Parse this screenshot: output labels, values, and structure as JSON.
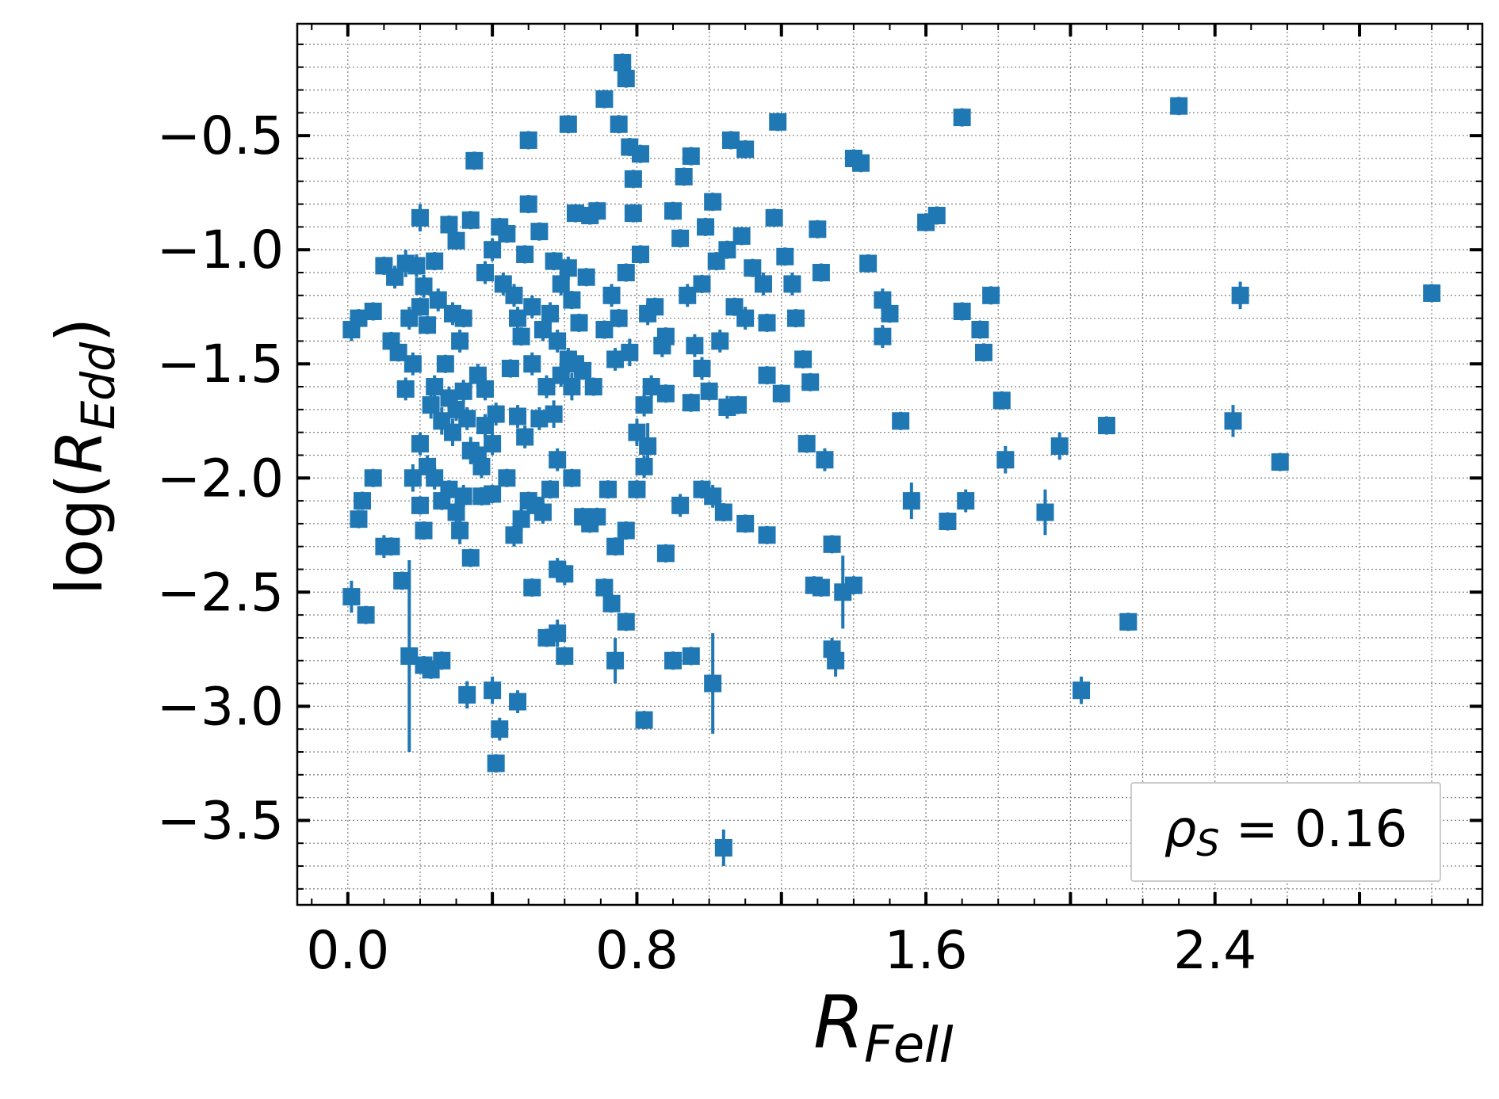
{
  "chart_data": {
    "type": "scatter",
    "xlabel": {
      "main": "R",
      "sub": "FeII"
    },
    "ylabel": {
      "pre": "log(",
      "main": "R",
      "sub": "Edd",
      "post": ")"
    },
    "xlim": [
      -0.14,
      3.14
    ],
    "ylim": [
      -3.87,
      -0.01
    ],
    "x_ticks": [
      0.0,
      0.8,
      1.6,
      2.4
    ],
    "x_tick_labels": [
      "0.0",
      "0.8",
      "1.6",
      "2.4"
    ],
    "y_ticks": [
      -0.5,
      -1.0,
      -1.5,
      -2.0,
      -2.5,
      -3.0,
      -3.5
    ],
    "y_tick_labels": [
      "−0.5",
      "−1.0",
      "−1.5",
      "−2.0",
      "−2.5",
      "−3.0",
      "−3.5"
    ],
    "grid": true,
    "series_color": "#1f77b4",
    "annotation": {
      "symbol": "ρ",
      "sub": "S",
      "text": " = 0.16",
      "placement": "bottom-right"
    },
    "points": [
      [
        0.01,
        -1.35,
        0.05
      ],
      [
        0.03,
        -1.3,
        0.04
      ],
      [
        0.07,
        -1.27,
        0.04
      ],
      [
        0.1,
        -1.07,
        0.04
      ],
      [
        0.12,
        -1.4,
        0.04
      ],
      [
        0.13,
        -1.12,
        0.05
      ],
      [
        0.14,
        -1.45,
        0.04
      ],
      [
        0.16,
        -1.06,
        0.06
      ],
      [
        0.17,
        -1.3,
        0.05
      ],
      [
        0.19,
        -1.07,
        0.05
      ],
      [
        0.2,
        -1.25,
        0.04
      ],
      [
        0.21,
        -1.16,
        0.05
      ],
      [
        0.2,
        -0.86,
        0.06
      ],
      [
        0.22,
        -1.33,
        0.04
      ],
      [
        0.24,
        -1.05,
        0.04
      ],
      [
        0.25,
        -1.22,
        0.05
      ],
      [
        0.27,
        -1.5,
        0.04
      ],
      [
        0.28,
        -0.89,
        0.04
      ],
      [
        0.29,
        -1.28,
        0.05
      ],
      [
        0.31,
        -1.4,
        0.05
      ],
      [
        0.32,
        -1.3,
        0.04
      ],
      [
        0.34,
        -0.87,
        0.04
      ],
      [
        0.36,
        -1.55,
        0.05
      ],
      [
        0.38,
        -1.61,
        0.05
      ],
      [
        0.3,
        -0.96,
        0.04
      ],
      [
        0.38,
        -1.1,
        0.05
      ],
      [
        0.4,
        -1.0,
        0.05
      ],
      [
        0.42,
        -0.9,
        0.04
      ],
      [
        0.43,
        -1.15,
        0.05
      ],
      [
        0.44,
        -0.93,
        0.04
      ],
      [
        0.46,
        -1.2,
        0.05
      ],
      [
        0.47,
        -1.3,
        0.05
      ],
      [
        0.48,
        -1.38,
        0.04
      ],
      [
        0.49,
        -1.02,
        0.04
      ],
      [
        0.5,
        -0.8,
        0.04
      ],
      [
        0.51,
        -1.25,
        0.05
      ],
      [
        0.53,
        -0.92,
        0.04
      ],
      [
        0.54,
        -1.35,
        0.05
      ],
      [
        0.56,
        -1.28,
        0.05
      ],
      [
        0.57,
        -1.05,
        0.04
      ],
      [
        0.58,
        -1.4,
        0.05
      ],
      [
        0.59,
        -1.15,
        0.05
      ],
      [
        0.61,
        -1.08,
        0.05
      ],
      [
        0.62,
        -1.22,
        0.04
      ],
      [
        0.63,
        -0.84,
        0.04
      ],
      [
        0.64,
        -1.32,
        0.04
      ],
      [
        0.66,
        -1.12,
        0.04
      ],
      [
        0.67,
        -0.85,
        0.04
      ],
      [
        0.69,
        -0.83,
        0.04
      ],
      [
        0.71,
        -1.35,
        0.04
      ],
      [
        0.73,
        -1.2,
        0.05
      ],
      [
        0.75,
        -1.3,
        0.04
      ],
      [
        0.77,
        -1.1,
        0.04
      ],
      [
        0.79,
        -0.84,
        0.04
      ],
      [
        0.81,
        -1.02,
        0.04
      ],
      [
        0.83,
        -1.28,
        0.05
      ],
      [
        0.85,
        -1.25,
        0.04
      ],
      [
        0.87,
        -1.42,
        0.05
      ],
      [
        0.88,
        -1.38,
        0.04
      ],
      [
        0.9,
        -0.83,
        0.04
      ],
      [
        0.92,
        -0.95,
        0.04
      ],
      [
        0.94,
        -1.2,
        0.05
      ],
      [
        0.96,
        -1.42,
        0.05
      ],
      [
        0.98,
        -1.15,
        0.04
      ],
      [
        0.99,
        -0.9,
        0.04
      ],
      [
        1.01,
        -0.79,
        0.04
      ],
      [
        1.02,
        -1.05,
        0.04
      ],
      [
        1.03,
        -1.4,
        0.05
      ],
      [
        1.05,
        -1.0,
        0.04
      ],
      [
        1.07,
        -1.25,
        0.04
      ],
      [
        1.09,
        -0.94,
        0.04
      ],
      [
        1.1,
        -1.3,
        0.05
      ],
      [
        1.12,
        -1.08,
        0.04
      ],
      [
        1.15,
        -1.15,
        0.05
      ],
      [
        1.16,
        -1.32,
        0.04
      ],
      [
        1.18,
        -0.86,
        0.04
      ],
      [
        1.21,
        -1.03,
        0.04
      ],
      [
        1.23,
        -1.15,
        0.05
      ],
      [
        1.24,
        -1.3,
        0.04
      ],
      [
        1.3,
        -0.91,
        0.04
      ],
      [
        1.31,
        -1.1,
        0.04
      ],
      [
        0.35,
        -0.61,
        0.04
      ],
      [
        0.5,
        -0.52,
        0.04
      ],
      [
        0.61,
        -0.45,
        0.04
      ],
      [
        0.71,
        -0.34,
        0.04
      ],
      [
        0.75,
        -0.45,
        0.04
      ],
      [
        0.76,
        -0.18,
        0.04
      ],
      [
        0.77,
        -0.25,
        0.04
      ],
      [
        0.78,
        -0.55,
        0.04
      ],
      [
        0.79,
        -0.69,
        0.04
      ],
      [
        0.81,
        -0.58,
        0.04
      ],
      [
        0.93,
        -0.68,
        0.04
      ],
      [
        0.95,
        -0.59,
        0.04
      ],
      [
        1.06,
        -0.52,
        0.04
      ],
      [
        1.1,
        -0.56,
        0.04
      ],
      [
        1.19,
        -0.44,
        0.04
      ],
      [
        0.16,
        -1.61,
        0.05
      ],
      [
        0.18,
        -1.5,
        0.05
      ],
      [
        0.2,
        -1.85,
        0.05
      ],
      [
        0.23,
        -1.68,
        0.06
      ],
      [
        0.24,
        -1.6,
        0.05
      ],
      [
        0.26,
        -1.75,
        0.06
      ],
      [
        0.28,
        -1.65,
        0.05
      ],
      [
        0.29,
        -1.8,
        0.06
      ],
      [
        0.3,
        -1.7,
        0.05
      ],
      [
        0.32,
        -1.62,
        0.05
      ],
      [
        0.33,
        -1.74,
        0.05
      ],
      [
        0.34,
        -1.88,
        0.06
      ],
      [
        0.36,
        -1.9,
        0.05
      ],
      [
        0.37,
        -1.95,
        0.05
      ],
      [
        0.38,
        -1.77,
        0.05
      ],
      [
        0.4,
        -1.85,
        0.05
      ],
      [
        0.41,
        -1.72,
        0.05
      ],
      [
        0.45,
        -1.52,
        0.04
      ],
      [
        0.47,
        -1.73,
        0.05
      ],
      [
        0.49,
        -1.82,
        0.05
      ],
      [
        0.51,
        -1.5,
        0.05
      ],
      [
        0.53,
        -1.74,
        0.05
      ],
      [
        0.55,
        -1.6,
        0.05
      ],
      [
        0.57,
        -1.72,
        0.06
      ],
      [
        0.58,
        -1.92,
        0.05
      ],
      [
        0.59,
        -1.55,
        0.05
      ],
      [
        0.61,
        -1.48,
        0.05
      ],
      [
        0.62,
        -1.6,
        0.06
      ],
      [
        0.63,
        -1.5,
        0.05
      ],
      [
        0.65,
        -1.53,
        0.04
      ],
      [
        0.68,
        -1.6,
        0.04
      ],
      [
        0.74,
        -1.48,
        0.05
      ],
      [
        0.78,
        -1.45,
        0.06
      ],
      [
        0.8,
        -1.8,
        0.06
      ],
      [
        0.82,
        -1.68,
        0.05
      ],
      [
        0.83,
        -1.86,
        0.1
      ],
      [
        0.84,
        -1.6,
        0.05
      ],
      [
        0.87,
        -1.42,
        0.05
      ],
      [
        0.88,
        -1.63,
        0.04
      ],
      [
        0.95,
        -1.67,
        0.04
      ],
      [
        0.98,
        -1.52,
        0.05
      ],
      [
        1.0,
        -1.62,
        0.04
      ],
      [
        1.05,
        -1.69,
        0.05
      ],
      [
        1.08,
        -1.68,
        0.04
      ],
      [
        1.16,
        -1.55,
        0.04
      ],
      [
        1.2,
        -1.63,
        0.04
      ],
      [
        1.26,
        -1.48,
        0.04
      ],
      [
        1.28,
        -1.58,
        0.04
      ],
      [
        0.03,
        -2.18,
        0.04
      ],
      [
        0.04,
        -2.1,
        0.04
      ],
      [
        0.07,
        -2.0,
        0.04
      ],
      [
        0.1,
        -2.3,
        0.05
      ],
      [
        0.12,
        -2.3,
        0.04
      ],
      [
        0.15,
        -2.45,
        0.04
      ],
      [
        0.18,
        -2.0,
        0.06
      ],
      [
        0.2,
        -2.12,
        0.04
      ],
      [
        0.21,
        -2.23,
        0.04
      ],
      [
        0.22,
        -1.95,
        0.05
      ],
      [
        0.24,
        -2.0,
        0.05
      ],
      [
        0.26,
        -2.1,
        0.04
      ],
      [
        0.28,
        -2.05,
        0.04
      ],
      [
        0.3,
        -2.15,
        0.05
      ],
      [
        0.31,
        -2.23,
        0.06
      ],
      [
        0.32,
        -2.08,
        0.05
      ],
      [
        0.34,
        -2.35,
        0.04
      ],
      [
        0.37,
        -2.08,
        0.04
      ],
      [
        0.4,
        -2.07,
        0.04
      ],
      [
        0.44,
        -2.0,
        0.04
      ],
      [
        0.46,
        -2.25,
        0.05
      ],
      [
        0.48,
        -2.18,
        0.05
      ],
      [
        0.5,
        -2.1,
        0.04
      ],
      [
        0.52,
        -2.12,
        0.04
      ],
      [
        0.54,
        -2.15,
        0.05
      ],
      [
        0.56,
        -2.05,
        0.04
      ],
      [
        0.58,
        -2.4,
        0.05
      ],
      [
        0.6,
        -2.42,
        0.05
      ],
      [
        0.62,
        -2.0,
        0.04
      ],
      [
        0.65,
        -2.17,
        0.04
      ],
      [
        0.67,
        -2.2,
        0.04
      ],
      [
        0.69,
        -2.17,
        0.04
      ],
      [
        0.72,
        -2.05,
        0.04
      ],
      [
        0.74,
        -2.3,
        0.04
      ],
      [
        0.77,
        -2.23,
        0.04
      ],
      [
        0.8,
        -2.05,
        0.04
      ],
      [
        0.82,
        -1.95,
        0.05
      ],
      [
        0.88,
        -2.33,
        0.04
      ],
      [
        0.92,
        -2.12,
        0.05
      ],
      [
        0.98,
        -2.05,
        0.04
      ],
      [
        1.01,
        -2.08,
        0.05
      ],
      [
        1.04,
        -2.15,
        0.04
      ],
      [
        1.1,
        -2.2,
        0.04
      ],
      [
        1.16,
        -2.25,
        0.04
      ],
      [
        1.27,
        -1.85,
        0.04
      ],
      [
        1.32,
        -1.92,
        0.05
      ],
      [
        1.34,
        -2.29,
        0.04
      ],
      [
        0.01,
        -2.52,
        0.07
      ],
      [
        0.05,
        -2.6,
        0.04
      ],
      [
        0.17,
        -2.78,
        0.42
      ],
      [
        0.21,
        -2.82,
        0.04
      ],
      [
        0.23,
        -2.84,
        0.04
      ],
      [
        0.26,
        -2.8,
        0.04
      ],
      [
        0.33,
        -2.95,
        0.06
      ],
      [
        0.4,
        -2.93,
        0.06
      ],
      [
        0.42,
        -3.1,
        0.05
      ],
      [
        0.41,
        -3.25,
        0.04
      ],
      [
        0.47,
        -2.98,
        0.05
      ],
      [
        0.51,
        -2.48,
        0.04
      ],
      [
        0.55,
        -2.7,
        0.04
      ],
      [
        0.58,
        -2.68,
        0.06
      ],
      [
        0.6,
        -2.78,
        0.04
      ],
      [
        0.71,
        -2.48,
        0.04
      ],
      [
        0.73,
        -2.55,
        0.04
      ],
      [
        0.74,
        -2.8,
        0.1
      ],
      [
        0.77,
        -2.63,
        0.04
      ],
      [
        0.82,
        -3.06,
        0.04
      ],
      [
        0.9,
        -2.8,
        0.04
      ],
      [
        0.95,
        -2.78,
        0.04
      ],
      [
        1.01,
        -2.9,
        0.22
      ],
      [
        1.04,
        -3.62,
        0.08
      ],
      [
        1.29,
        -2.47,
        0.04
      ],
      [
        1.31,
        -2.48,
        0.04
      ],
      [
        1.34,
        -2.75,
        0.05
      ],
      [
        1.35,
        -2.8,
        0.07
      ],
      [
        1.37,
        -2.5,
        0.16
      ],
      [
        1.4,
        -2.47,
        0.04
      ],
      [
        1.4,
        -0.6,
        0.04
      ],
      [
        1.42,
        -0.62,
        0.04
      ],
      [
        1.44,
        -1.06,
        0.04
      ],
      [
        1.48,
        -1.22,
        0.05
      ],
      [
        1.5,
        -1.28,
        0.04
      ],
      [
        1.48,
        -1.38,
        0.05
      ],
      [
        1.53,
        -1.75,
        0.04
      ],
      [
        1.56,
        -2.1,
        0.08
      ],
      [
        1.6,
        -0.88,
        0.04
      ],
      [
        1.63,
        -0.85,
        0.04
      ],
      [
        1.66,
        -2.19,
        0.04
      ],
      [
        1.7,
        -0.42,
        0.04
      ],
      [
        1.7,
        -1.27,
        0.04
      ],
      [
        1.71,
        -2.1,
        0.05
      ],
      [
        1.75,
        -1.35,
        0.04
      ],
      [
        1.76,
        -1.45,
        0.04
      ],
      [
        1.78,
        -1.2,
        0.04
      ],
      [
        1.81,
        -1.66,
        0.04
      ],
      [
        1.82,
        -1.92,
        0.06
      ],
      [
        1.93,
        -2.15,
        0.1
      ],
      [
        1.97,
        -1.86,
        0.06
      ],
      [
        2.03,
        -2.93,
        0.06
      ],
      [
        2.1,
        -1.77,
        0.04
      ],
      [
        2.16,
        -2.63,
        0.04
      ],
      [
        2.3,
        -0.37,
        0.04
      ],
      [
        2.45,
        -1.75,
        0.07
      ],
      [
        2.47,
        -1.2,
        0.06
      ],
      [
        2.58,
        -1.93,
        0.04
      ],
      [
        3.0,
        -1.19,
        0.04
      ]
    ]
  }
}
